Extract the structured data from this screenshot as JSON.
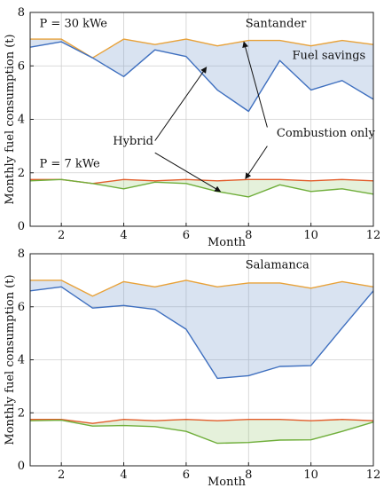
{
  "chart_data": [
    {
      "type": "area",
      "title": "Santander",
      "xlabel": "Month",
      "ylabel": "Monthly fuel consumption (t)",
      "xlim": [
        1,
        12
      ],
      "ylim": [
        0,
        8
      ],
      "xticks": [
        2,
        4,
        6,
        8,
        10,
        12
      ],
      "yticks": [
        0,
        2,
        4,
        6,
        8
      ],
      "grid": true,
      "x": [
        1,
        2,
        3,
        4,
        5,
        6,
        7,
        8,
        9,
        10,
        11,
        12
      ],
      "series": [
        {
          "name": "Combustion only",
          "group": "P = 30 kWe",
          "color": "#e8a23a",
          "values": [
            7.0,
            7.0,
            6.3,
            7.0,
            6.8,
            7.0,
            6.75,
            6.95,
            6.95,
            6.75,
            6.95,
            6.8
          ]
        },
        {
          "name": "Hybrid",
          "group": "P = 30 kWe",
          "color": "#3e6fbf",
          "values": [
            6.7,
            6.9,
            6.3,
            5.6,
            6.6,
            6.35,
            5.1,
            4.3,
            6.2,
            5.1,
            5.45,
            4.75
          ]
        },
        {
          "name": "Combustion only",
          "group": "P = 7 kWe",
          "color": "#e25d2b",
          "values": [
            1.75,
            1.75,
            1.6,
            1.75,
            1.7,
            1.75,
            1.7,
            1.75,
            1.75,
            1.7,
            1.75,
            1.7
          ]
        },
        {
          "name": "Hybrid",
          "group": "P = 7 kWe",
          "color": "#6fae3a",
          "values": [
            1.7,
            1.75,
            1.6,
            1.4,
            1.65,
            1.6,
            1.3,
            1.1,
            1.55,
            1.3,
            1.4,
            1.2
          ]
        }
      ],
      "fill_between": [
        [
          0,
          1
        ],
        [
          2,
          3
        ]
      ],
      "annotations": {
        "power_high": "P = 30 kWe",
        "power_low": "P = 7 kWe",
        "hybrid": "Hybrid",
        "combustion": "Combustion only",
        "savings": "Fuel savings"
      }
    },
    {
      "type": "area",
      "title": "Salamanca",
      "xlabel": "Month",
      "ylabel": "Monthly fuel consumption (t)",
      "xlim": [
        1,
        12
      ],
      "ylim": [
        0,
        8
      ],
      "xticks": [
        2,
        4,
        6,
        8,
        10,
        12
      ],
      "yticks": [
        0,
        2,
        4,
        6,
        8
      ],
      "grid": true,
      "x": [
        1,
        2,
        3,
        4,
        5,
        6,
        7,
        8,
        9,
        10,
        11,
        12
      ],
      "series": [
        {
          "name": "Combustion only",
          "group": "P = 30 kWe",
          "color": "#e8a23a",
          "values": [
            7.0,
            7.0,
            6.4,
            6.95,
            6.75,
            7.0,
            6.75,
            6.9,
            6.9,
            6.7,
            6.95,
            6.75
          ]
        },
        {
          "name": "Hybrid",
          "group": "P = 30 kWe",
          "color": "#3e6fbf",
          "values": [
            6.6,
            6.75,
            5.95,
            6.05,
            5.9,
            5.15,
            3.3,
            3.4,
            3.75,
            3.78,
            5.2,
            6.6
          ]
        },
        {
          "name": "Combustion only",
          "group": "P = 7 kWe",
          "color": "#e25d2b",
          "values": [
            1.75,
            1.75,
            1.6,
            1.75,
            1.7,
            1.75,
            1.7,
            1.75,
            1.75,
            1.7,
            1.75,
            1.7
          ]
        },
        {
          "name": "Hybrid",
          "group": "P = 7 kWe",
          "color": "#6fae3a",
          "values": [
            1.7,
            1.72,
            1.5,
            1.52,
            1.48,
            1.3,
            0.85,
            0.88,
            0.97,
            0.98,
            1.3,
            1.65
          ]
        }
      ],
      "fill_between": [
        [
          0,
          1
        ],
        [
          2,
          3
        ]
      ]
    }
  ]
}
